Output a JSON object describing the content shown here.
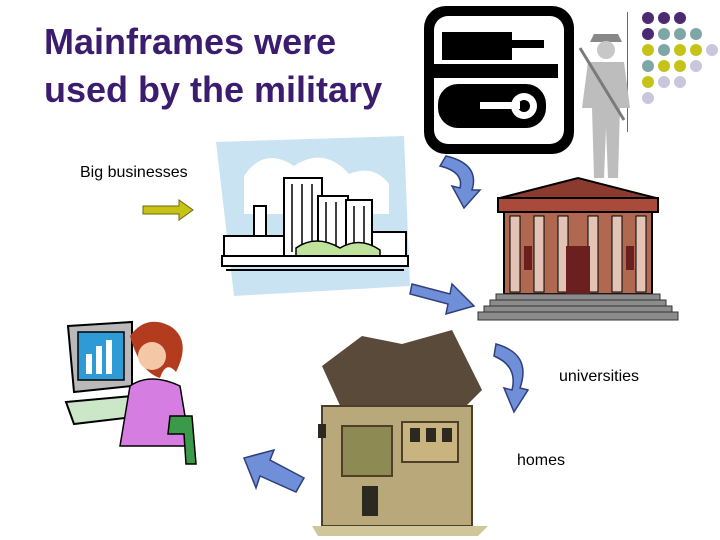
{
  "slide": {
    "title": "Mainframes were used by the military",
    "labels": {
      "big_businesses": "Big businesses",
      "universities": "universities",
      "homes": "homes"
    }
  },
  "colors": {
    "title": "#3b1c6e",
    "arrow_blue": "#6f8fd8",
    "arrow_olive": "#c7c214",
    "dot_purple": "#4b2a70",
    "dot_teal": "#7ea6a6",
    "dot_olive": "#c5c21a",
    "dot_lavender": "#c9c6de"
  }
}
